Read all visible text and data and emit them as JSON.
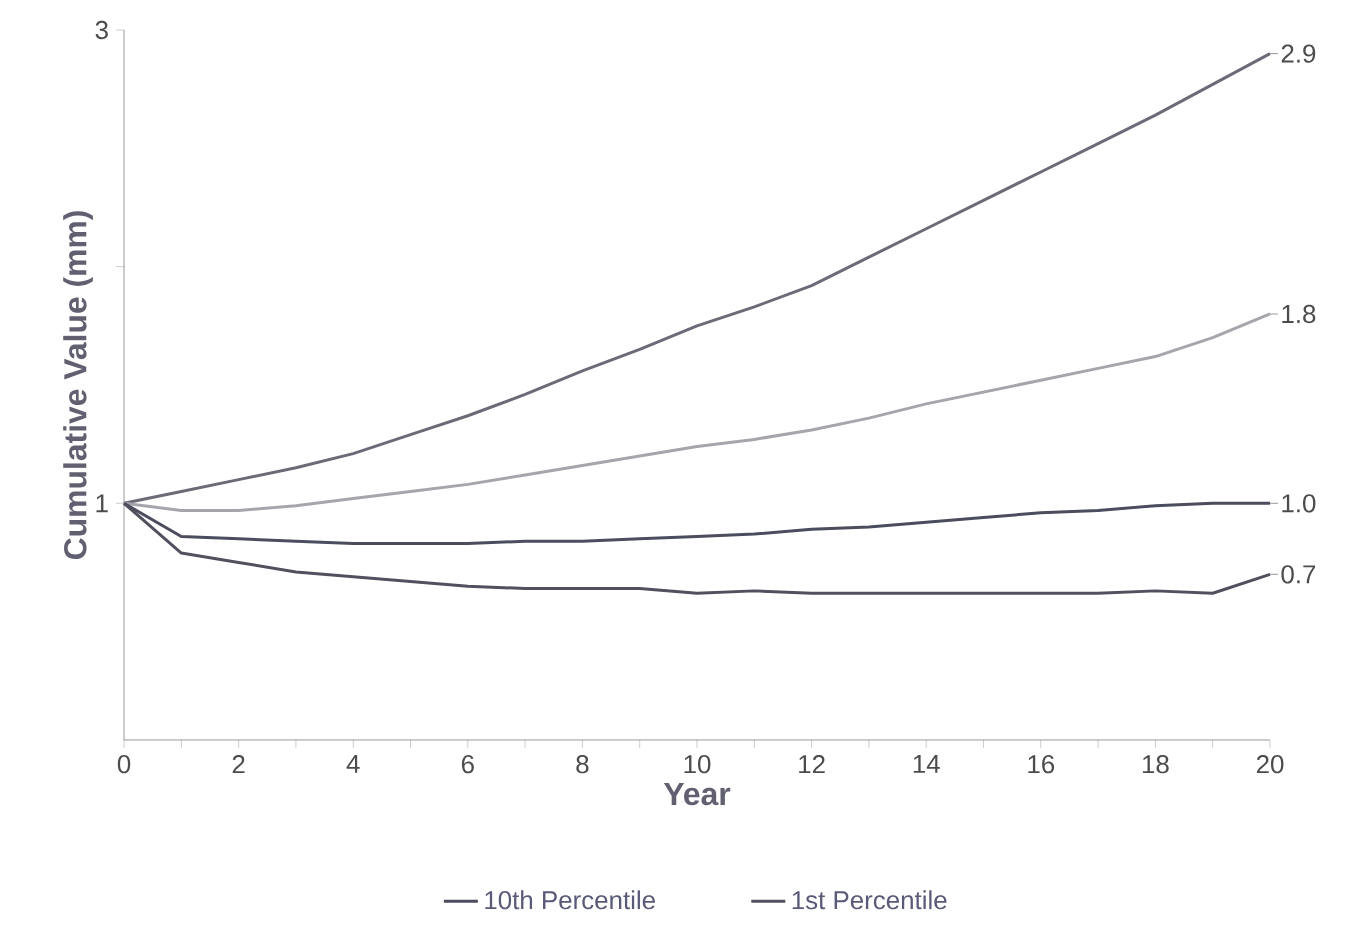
{
  "chart_data": {
    "type": "line",
    "xlabel": "Year",
    "ylabel": "Cumulative Value (mm)",
    "x": [
      0,
      1,
      2,
      3,
      4,
      5,
      6,
      7,
      8,
      9,
      10,
      11,
      12,
      13,
      14,
      15,
      16,
      17,
      18,
      19,
      20
    ],
    "xlim": [
      0,
      20
    ],
    "ylim": [
      0,
      3
    ],
    "xticks": [
      0,
      {
        "value": 1,
        "label": null
      },
      2,
      {
        "value": 3,
        "label": null
      },
      4,
      {
        "value": 5,
        "label": null
      },
      6,
      {
        "value": 7,
        "label": null
      },
      8,
      {
        "value": 9,
        "label": null
      },
      10,
      {
        "value": 11,
        "label": null
      },
      12,
      {
        "value": 13,
        "label": null
      },
      14,
      {
        "value": 15,
        "label": null
      },
      16,
      {
        "value": 17,
        "label": null
      },
      18,
      {
        "value": 19,
        "label": null
      },
      20
    ],
    "yticks": [
      1,
      {
        "value": 2,
        "label": null
      },
      3
    ],
    "series": [
      {
        "color": "#6b6b78",
        "values": [
          1,
          1.05,
          1.1,
          1.15,
          1.21,
          1.29,
          1.37,
          1.46,
          1.56,
          1.65,
          1.75,
          1.83,
          1.92,
          2.04,
          2.16,
          2.28,
          2.4,
          2.52,
          2.64,
          2.77,
          2.9
        ],
        "value_labels": [
          null,
          null,
          null,
          null,
          null,
          null,
          null,
          null,
          null,
          null,
          null,
          null,
          null,
          null,
          null,
          null,
          null,
          null,
          null,
          null,
          "2.9"
        ]
      },
      {
        "color": "#a5a5ac",
        "values": [
          1,
          0.97,
          0.97,
          0.99,
          1.02,
          1.05,
          1.08,
          1.12,
          1.16,
          1.2,
          1.24,
          1.27,
          1.31,
          1.36,
          1.42,
          1.47,
          1.52,
          1.57,
          1.62,
          1.7,
          1.8
        ],
        "value_labels": [
          null,
          null,
          null,
          null,
          null,
          null,
          null,
          null,
          null,
          null,
          null,
          null,
          null,
          null,
          null,
          null,
          null,
          null,
          null,
          null,
          "1.8"
        ]
      },
      {
        "name": "10th Percentile",
        "color": "#4b4c5e",
        "values": [
          1,
          0.86,
          0.85,
          0.84,
          0.83,
          0.83,
          0.83,
          0.84,
          0.84,
          0.85,
          0.86,
          0.87,
          0.89,
          0.9,
          0.92,
          0.94,
          0.96,
          0.97,
          0.99,
          1.0,
          1.0
        ],
        "value_labels": [
          null,
          null,
          null,
          null,
          null,
          null,
          null,
          null,
          null,
          null,
          null,
          null,
          null,
          null,
          null,
          null,
          null,
          null,
          null,
          null,
          "1.0"
        ]
      },
      {
        "name": "1st Percentile",
        "color": "#50505f",
        "values": [
          1,
          0.79,
          0.75,
          0.71,
          0.69,
          0.67,
          0.65,
          0.64,
          0.64,
          0.64,
          0.62,
          0.63,
          0.62,
          0.62,
          0.62,
          0.62,
          0.62,
          0.62,
          0.63,
          0.62,
          0.7
        ],
        "value_labels": [
          null,
          null,
          null,
          null,
          null,
          null,
          null,
          null,
          null,
          null,
          null,
          null,
          null,
          null,
          null,
          null,
          null,
          null,
          null,
          null,
          "0.7"
        ]
      }
    ],
    "legend": "bottom",
    "marker": "none",
    "line_style": "solid"
  }
}
